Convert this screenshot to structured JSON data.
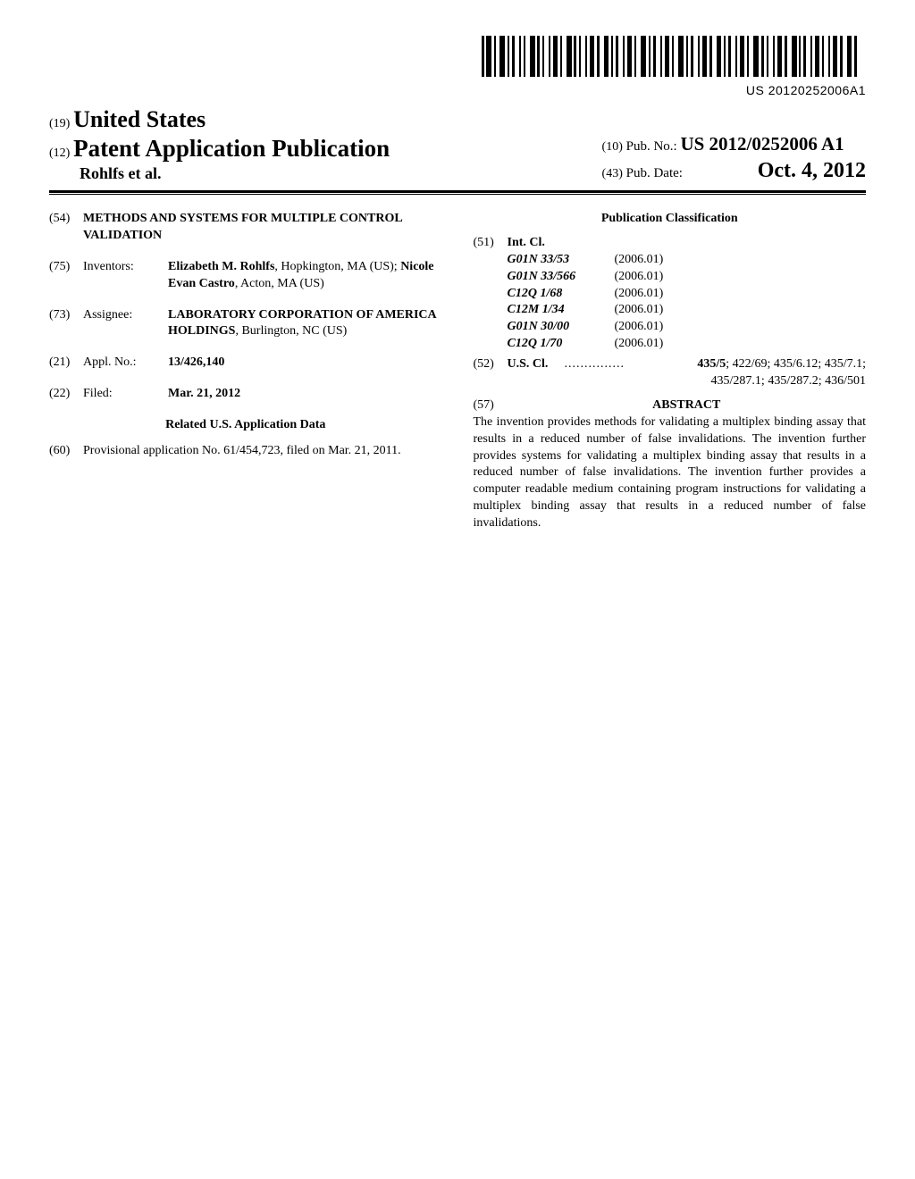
{
  "barcode": {
    "text": "US 20120252006A1"
  },
  "header": {
    "country_num": "(19)",
    "country": "United States",
    "pub_num": "(12)",
    "pub_title": "Patent Application Publication",
    "authors": "Rohlfs et al.",
    "pubno_num": "(10)",
    "pubno_label": "Pub. No.:",
    "pubno_value": "US 2012/0252006 A1",
    "pubdate_num": "(43)",
    "pubdate_label": "Pub. Date:",
    "pubdate_value": "Oct. 4, 2012"
  },
  "left": {
    "title_num": "(54)",
    "title_value": "METHODS AND SYSTEMS FOR MULTIPLE CONTROL VALIDATION",
    "inventors_num": "(75)",
    "inventors_label": "Inventors:",
    "inventors_value_1a": "Elizabeth M. Rohlfs",
    "inventors_value_1b": ", Hopkington, MA (US); ",
    "inventors_value_2a": "Nicole Evan Castro",
    "inventors_value_2b": ", Acton, MA (US)",
    "assignee_num": "(73)",
    "assignee_label": "Assignee:",
    "assignee_value_1": "LABORATORY CORPORATION OF AMERICA HOLDINGS",
    "assignee_value_2": ", Burlington, NC (US)",
    "applno_num": "(21)",
    "applno_label": "Appl. No.:",
    "applno_value": "13/426,140",
    "filed_num": "(22)",
    "filed_label": "Filed:",
    "filed_value": "Mar. 21, 2012",
    "related_heading": "Related U.S. Application Data",
    "prov_num": "(60)",
    "prov_value": "Provisional application No. 61/454,723, filed on Mar. 21, 2011."
  },
  "right": {
    "class_heading": "Publication Classification",
    "intcl_num": "(51)",
    "intcl_label": "Int. Cl.",
    "intcl_items": [
      {
        "code": "G01N 33/53",
        "year": "(2006.01)"
      },
      {
        "code": "G01N 33/566",
        "year": "(2006.01)"
      },
      {
        "code": "C12Q 1/68",
        "year": "(2006.01)"
      },
      {
        "code": "C12M 1/34",
        "year": "(2006.01)"
      },
      {
        "code": "G01N 30/00",
        "year": "(2006.01)"
      },
      {
        "code": "C12Q 1/70",
        "year": "(2006.01)"
      }
    ],
    "uscl_num": "(52)",
    "uscl_label": "U.S. Cl.",
    "uscl_dots": "...............",
    "uscl_codes_1": "435/5; 422/69; 435/6.12; 435/7.1;",
    "uscl_codes_2": "435/287.1; 435/287.2; 436/501",
    "abstract_num": "(57)",
    "abstract_heading": "ABSTRACT",
    "abstract_text": "The invention provides methods for validating a multiplex binding assay that results in a reduced number of false invalidations. The invention further provides systems for validating a multiplex binding assay that results in a reduced number of false invalidations. The invention further provides a computer readable medium containing program instructions for validating a multiplex binding assay that results in a reduced number of false invalidations."
  }
}
